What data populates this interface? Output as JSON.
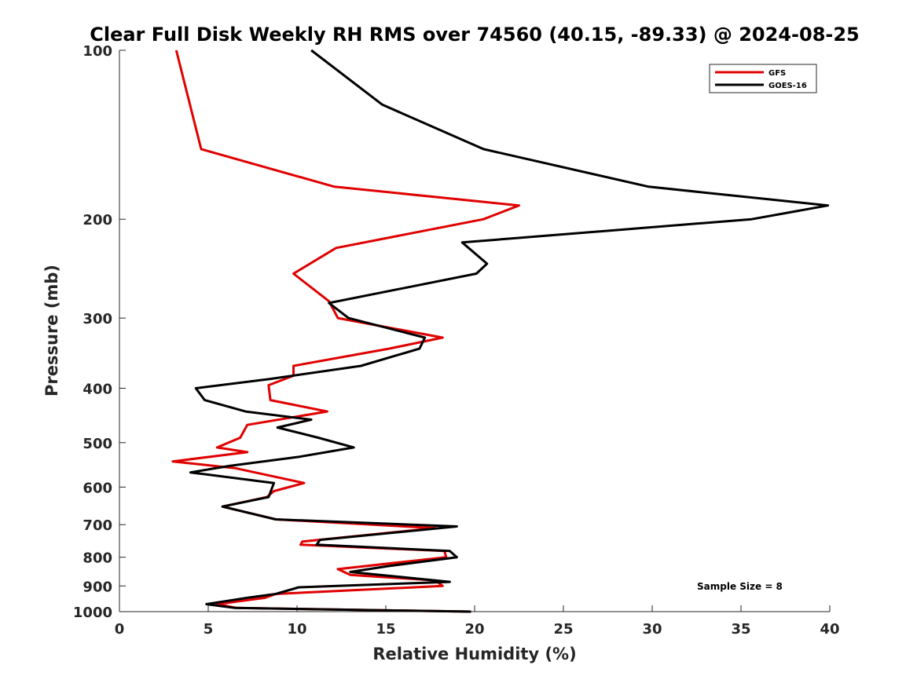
{
  "chart_data": {
    "type": "line",
    "title": "Clear Full Disk Weekly RH RMS over 74560 (40.15, -89.33) @ 2024-08-25",
    "xlabel": "Relative Humidity (%)",
    "ylabel": "Pressure (mb)",
    "xlim": [
      0,
      40
    ],
    "ylim": [
      100,
      1000
    ],
    "yscale": "log",
    "y_reversed": true,
    "xticks": [
      0,
      5,
      10,
      15,
      20,
      25,
      30,
      35,
      40
    ],
    "yticks": [
      100,
      200,
      300,
      400,
      500,
      600,
      700,
      800,
      900,
      1000
    ],
    "grid": false,
    "legend_position": "top-right",
    "annotation": "Sample Size = 8",
    "series": [
      {
        "name": "GFS",
        "color": "#e00000",
        "points": [
          [
            3.2,
            100
          ],
          [
            4.6,
            150
          ],
          [
            12.1,
            175
          ],
          [
            22.5,
            189
          ],
          [
            20.5,
            200
          ],
          [
            12.2,
            225
          ],
          [
            9.8,
            250
          ],
          [
            11.8,
            280
          ],
          [
            12.3,
            300
          ],
          [
            18.2,
            325
          ],
          [
            15.2,
            340
          ],
          [
            9.8,
            365
          ],
          [
            9.8,
            380
          ],
          [
            8.4,
            395
          ],
          [
            8.5,
            420
          ],
          [
            11.7,
            440
          ],
          [
            7.2,
            465
          ],
          [
            6.8,
            490
          ],
          [
            5.5,
            510
          ],
          [
            7.2,
            520
          ],
          [
            3.0,
            540
          ],
          [
            6.5,
            555
          ],
          [
            10.4,
            590
          ],
          [
            8.7,
            610
          ],
          [
            8.3,
            625
          ],
          [
            5.8,
            650
          ],
          [
            8.8,
            685
          ],
          [
            17.8,
            710
          ],
          [
            10.3,
            750
          ],
          [
            10.2,
            760
          ],
          [
            18.3,
            780
          ],
          [
            18.4,
            800
          ],
          [
            12.3,
            840
          ],
          [
            13.0,
            860
          ],
          [
            17.8,
            880
          ],
          [
            18.2,
            900
          ],
          [
            8.8,
            930
          ],
          [
            8.2,
            945
          ],
          [
            5.5,
            970
          ],
          [
            6.6,
            985
          ],
          [
            19.8,
            1000
          ]
        ]
      },
      {
        "name": "GOES-16",
        "color": "#000000",
        "points": [
          [
            10.8,
            100
          ],
          [
            14.8,
            125
          ],
          [
            20.5,
            150
          ],
          [
            29.8,
            175
          ],
          [
            39.9,
            189
          ],
          [
            35.6,
            200
          ],
          [
            19.3,
            220
          ],
          [
            20.7,
            240
          ],
          [
            20.1,
            250
          ],
          [
            11.8,
            282
          ],
          [
            12.9,
            300
          ],
          [
            17.2,
            325
          ],
          [
            16.9,
            340
          ],
          [
            13.6,
            365
          ],
          [
            8.5,
            385
          ],
          [
            4.3,
            400
          ],
          [
            4.8,
            420
          ],
          [
            7.1,
            440
          ],
          [
            10.8,
            455
          ],
          [
            8.9,
            470
          ],
          [
            11.2,
            490
          ],
          [
            13.2,
            510
          ],
          [
            10.1,
            530
          ],
          [
            6.2,
            550
          ],
          [
            4.0,
            565
          ],
          [
            8.7,
            590
          ],
          [
            8.4,
            625
          ],
          [
            5.8,
            650
          ],
          [
            8.8,
            685
          ],
          [
            19.0,
            705
          ],
          [
            11.3,
            745
          ],
          [
            11.1,
            760
          ],
          [
            18.6,
            780
          ],
          [
            19.0,
            800
          ],
          [
            15.1,
            830
          ],
          [
            13.0,
            850
          ],
          [
            18.6,
            885
          ],
          [
            10.1,
            905
          ],
          [
            8.8,
            930
          ],
          [
            7.2,
            945
          ],
          [
            4.9,
            970
          ],
          [
            6.5,
            985
          ],
          [
            19.8,
            1000
          ]
        ]
      }
    ]
  }
}
